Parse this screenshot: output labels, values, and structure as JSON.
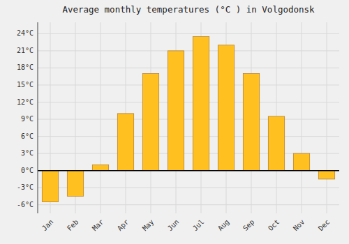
{
  "chart_data": {
    "type": "bar",
    "title": "Average monthly temperatures (°C ) in Volgodonsk",
    "categories": [
      "Jan",
      "Feb",
      "Mar",
      "Apr",
      "May",
      "Jun",
      "Jul",
      "Aug",
      "Sep",
      "Oct",
      "Nov",
      "Dec"
    ],
    "values": [
      -5.5,
      -4.5,
      1.0,
      10.0,
      17.0,
      21.0,
      23.5,
      22.0,
      17.0,
      9.5,
      3.0,
      -1.5
    ],
    "color": "#FFC020",
    "ylim": [
      -7.5,
      26
    ],
    "yticks": [
      {
        "value": -6,
        "label": "-6°C"
      },
      {
        "value": -3,
        "label": "-3°C"
      },
      {
        "value": 0,
        "label": "0°C"
      },
      {
        "value": 3,
        "label": "3°C"
      },
      {
        "value": 6,
        "label": "6°C"
      },
      {
        "value": 9,
        "label": "9°C"
      },
      {
        "value": 12,
        "label": "12°C"
      },
      {
        "value": 15,
        "label": "15°C"
      },
      {
        "value": 18,
        "label": "18°C"
      },
      {
        "value": 21,
        "label": "21°C"
      },
      {
        "value": 24,
        "label": "24°C"
      }
    ],
    "grid": true
  }
}
